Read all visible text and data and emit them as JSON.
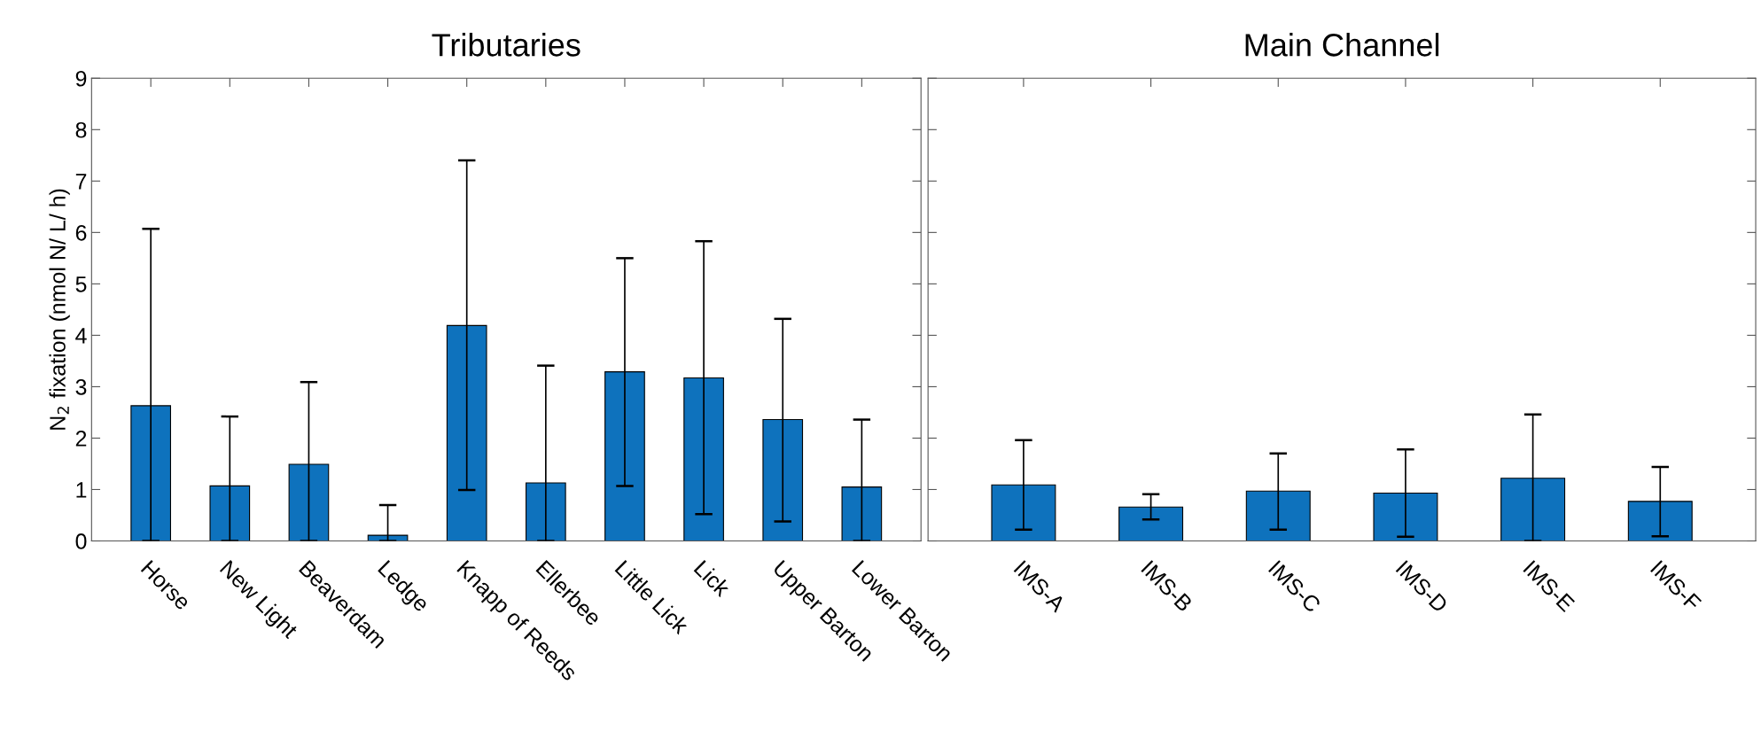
{
  "chart_data": [
    {
      "type": "bar",
      "title": "Tributaries",
      "ylabel": "N$_{2}$ fixation (nmol N/ L/ h)",
      "categories": [
        "Horse",
        "New Light",
        "Beaverdam",
        "Ledge",
        "Knapp of Reeds",
        "Ellerbee",
        "Little Lick",
        "Lick",
        "Upper Barton",
        "Lower Barton"
      ],
      "values": [
        2.63,
        1.07,
        1.49,
        0.11,
        4.19,
        1.13,
        3.29,
        3.17,
        2.36,
        1.05
      ],
      "errors": [
        [
          0,
          6.07
        ],
        [
          0,
          2.42
        ],
        [
          0,
          3.09
        ],
        [
          0,
          0.7
        ],
        [
          0.99,
          7.4
        ],
        [
          0,
          3.41
        ],
        [
          1.07,
          5.5
        ],
        [
          0.52,
          5.83
        ],
        [
          0.38,
          4.32
        ],
        [
          0,
          2.36
        ]
      ],
      "color": "#0e72bd",
      "ylim": [
        0,
        9
      ],
      "yticks": [
        0,
        1,
        2,
        3,
        4,
        5,
        6,
        7,
        8,
        9
      ],
      "grid": false,
      "legend": false
    },
    {
      "type": "bar",
      "title": "Main Channel",
      "categories": [
        "IMS-A",
        "IMS-B",
        "IMS-C",
        "IMS-D",
        "IMS-E",
        "IMS-F"
      ],
      "values": [
        1.09,
        0.66,
        0.97,
        0.93,
        1.22,
        0.77
      ],
      "errors": [
        [
          0.22,
          1.96
        ],
        [
          0.42,
          0.91
        ],
        [
          0.22,
          1.7
        ],
        [
          0.08,
          1.78
        ],
        [
          0,
          2.46
        ],
        [
          0.09,
          1.44
        ]
      ],
      "color": "#0e72bd",
      "ylim": [
        0,
        9
      ],
      "yticks": [
        0,
        1,
        2,
        3,
        4,
        5,
        6,
        7,
        8,
        9
      ],
      "tick_labels": "x",
      "grid": false,
      "legend": false
    }
  ]
}
